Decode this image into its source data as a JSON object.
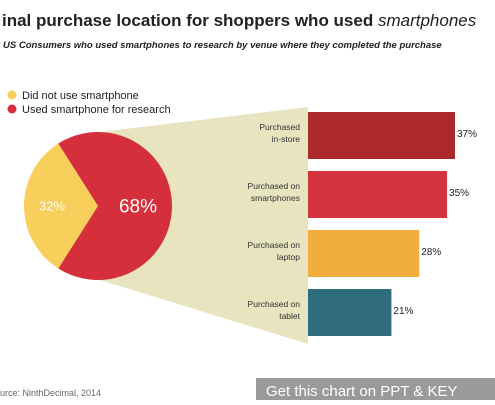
{
  "page": {
    "title": "inal purchase location for shoppers who used",
    "title_emphasis": "smartphones",
    "subtitle": "US Consumers who used smartphones to research by venue where they completed the purchase",
    "source": "urce: NinthDecimal, 2014",
    "watermark": "Get this chart on PPT & KEY"
  },
  "colors": {
    "pie_no_phone": "#f8cf5b",
    "pie_phone": "#d52f3b",
    "connector": "#e7e4bf",
    "bar_instore": "#ac2a2c",
    "bar_smartphone": "#d4323d",
    "bar_laptop": "#f2ad3f",
    "bar_tablet": "#2f6c7d",
    "watermark_bg": "#9a9a9a"
  },
  "chart_data": [
    {
      "type": "pie",
      "legend_placement": "top-left",
      "slices": [
        {
          "name": "Did not use smartphone",
          "value": 32,
          "label": "32%",
          "color": "#f8cf5b"
        },
        {
          "name": "Used smartphone for research",
          "value": 68,
          "label": "68%",
          "color": "#d52f3b"
        }
      ]
    },
    {
      "type": "bar",
      "orientation": "horizontal",
      "xlim": [
        0,
        37
      ],
      "categories": [
        "Purchased\nin-store",
        "Purchased on\nsmartphones",
        "Purchased on\nlaptop",
        "Purchased on\ntablet"
      ],
      "values": [
        37,
        35,
        28,
        21
      ],
      "value_labels": [
        "37%",
        "35%",
        "28%",
        "21%"
      ],
      "colors": [
        "#ac2a2c",
        "#d4323d",
        "#f2ad3f",
        "#2f6c7d"
      ]
    }
  ]
}
